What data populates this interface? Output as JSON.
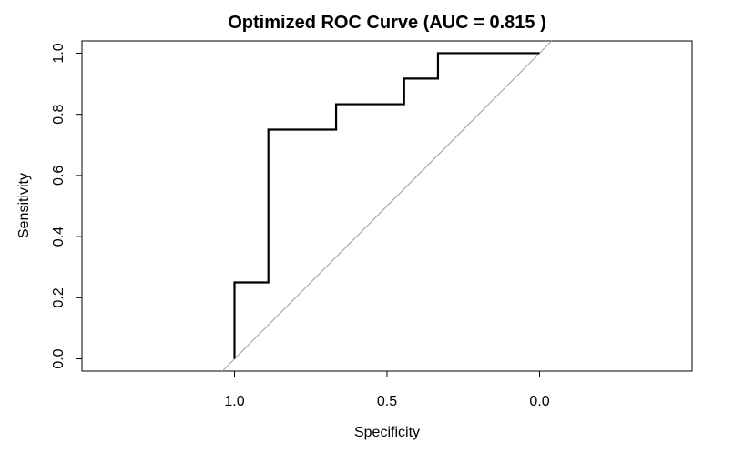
{
  "chart_data": {
    "type": "line",
    "title": "Optimized ROC Curve (AUC = 0.815 )",
    "xlabel": "Specificity",
    "ylabel": "Sensitivity",
    "x_reversed": true,
    "xlim": [
      1.5,
      -0.5
    ],
    "ylim": [
      -0.04,
      1.04
    ],
    "x_ticks": [
      1.0,
      0.5,
      0.0
    ],
    "x_tick_labels": [
      "1.0",
      "0.5",
      "0.0"
    ],
    "y_ticks": [
      0.0,
      0.2,
      0.4,
      0.6,
      0.8,
      1.0
    ],
    "y_tick_labels": [
      "0.0",
      "0.2",
      "0.4",
      "0.6",
      "0.8",
      "1.0"
    ],
    "grid": false,
    "series": [
      {
        "name": "ROC",
        "color": "#000000",
        "specificity": [
          1.0,
          1.0,
          0.889,
          0.889,
          0.667,
          0.667,
          0.444,
          0.444,
          0.333,
          0.333,
          0.0
        ],
        "sensitivity": [
          0.0,
          0.25,
          0.25,
          0.75,
          0.75,
          0.833,
          0.833,
          0.917,
          0.917,
          1.0,
          1.0
        ]
      }
    ],
    "reference_line": {
      "name": "chance diagonal",
      "color": "#aaaaaa",
      "specificity": [
        1.04,
        -0.04
      ],
      "sensitivity": [
        -0.04,
        1.04
      ]
    }
  }
}
